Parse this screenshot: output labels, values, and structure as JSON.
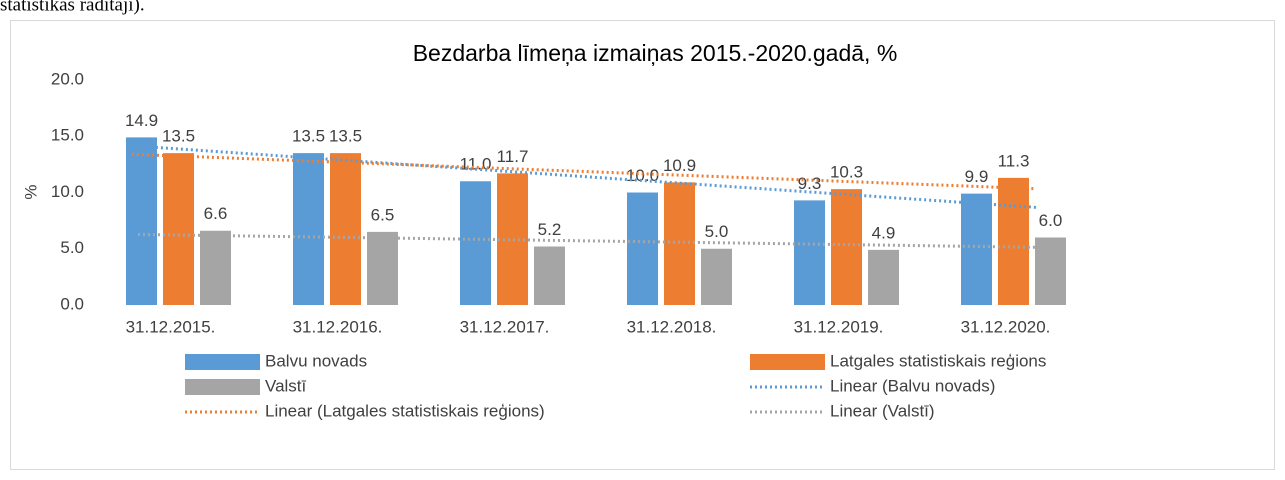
{
  "text_above": "statistikas rādītāji).",
  "chart_data": {
    "type": "bar",
    "title": "Bezdarba līmeņa izmaiņas  2015.-2020.gadā, %",
    "ylabel": "%",
    "categories": [
      "31.12.2015.",
      "31.12.2016.",
      "31.12.2017.",
      "31.12.2018.",
      "31.12.2019.",
      "31.12.2020."
    ],
    "series": [
      {
        "name": "Balvu novads",
        "color": "#5b9bd5",
        "values": [
          14.9,
          13.5,
          11.0,
          10.0,
          9.3,
          9.9
        ],
        "value_labels": [
          "14.9",
          "13.5",
          "11.0",
          "10.0",
          "9.3",
          "9.9"
        ],
        "trendline": {
          "name": "Linear (Balvu novads)",
          "color": "#5b9bd5"
        }
      },
      {
        "name": "Latgales statistiskais reģions",
        "color": "#ed7d31",
        "values": [
          13.5,
          13.5,
          11.7,
          10.9,
          10.3,
          11.3
        ],
        "value_labels": [
          "13.5",
          "13.5",
          "11.7",
          "10.9",
          "10.3",
          "11.3"
        ],
        "trendline": {
          "name": "Linear (Latgales statistiskais reģions)",
          "color": "#ed7d31"
        }
      },
      {
        "name": "Valstī",
        "color": "#a5a5a5",
        "values": [
          6.6,
          6.5,
          5.2,
          5.0,
          4.9,
          6.0
        ],
        "value_labels": [
          "6.6",
          "6.5",
          "5.2",
          "5.0",
          "4.9",
          "6.0"
        ],
        "trendline": {
          "name": "Linear (Valstī)",
          "color": "#a5a5a5"
        }
      }
    ],
    "ylim": [
      0,
      20
    ],
    "yticks": [
      {
        "value": 0,
        "label": "0.0"
      },
      {
        "value": 5,
        "label": "5.0"
      },
      {
        "value": 10,
        "label": "10.0"
      },
      {
        "value": 15,
        "label": "15.0"
      },
      {
        "value": 20,
        "label": "20.0"
      }
    ],
    "grid": false,
    "legend": "bottom"
  }
}
